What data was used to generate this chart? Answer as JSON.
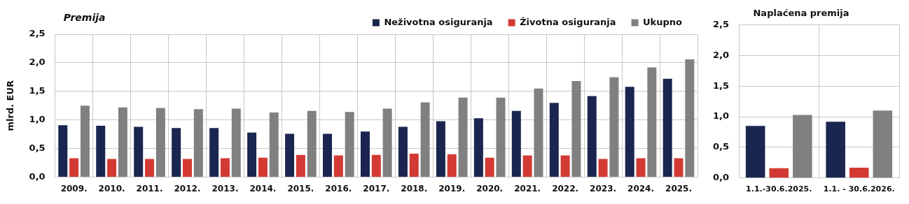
{
  "chart_data": [
    {
      "type": "bar",
      "title": "Premija",
      "ylabel": "mlrd. EUR",
      "categories": [
        "2009.",
        "2010.",
        "2011.",
        "2012.",
        "2013.",
        "2014.",
        "2015.",
        "2016.",
        "2017.",
        "2018.",
        "2019.",
        "2020.",
        "2021.",
        "2022.",
        "2023.",
        "2024.",
        "2025."
      ],
      "series": [
        {
          "name": "Neživotna osiguranja",
          "color": "#1a2550",
          "values": [
            0.91,
            0.9,
            0.88,
            0.86,
            0.86,
            0.78,
            0.76,
            0.76,
            0.8,
            0.88,
            0.98,
            1.03,
            1.16,
            1.3,
            1.42,
            1.58,
            1.72
          ]
        },
        {
          "name": "Životna osiguranja",
          "color": "#d33a33",
          "values": [
            0.33,
            0.32,
            0.32,
            0.32,
            0.33,
            0.34,
            0.39,
            0.38,
            0.39,
            0.41,
            0.4,
            0.34,
            0.38,
            0.38,
            0.32,
            0.33,
            0.33
          ]
        },
        {
          "name": "Ukupno",
          "color": "#808080",
          "values": [
            1.25,
            1.22,
            1.21,
            1.19,
            1.2,
            1.13,
            1.16,
            1.14,
            1.2,
            1.31,
            1.39,
            1.39,
            1.55,
            1.68,
            1.75,
            1.92,
            2.06
          ]
        }
      ],
      "ylim": [
        0,
        2.5
      ],
      "yticks": [
        {
          "value": 0,
          "label": "0,0"
        },
        {
          "value": 0.5,
          "label": "0,5"
        },
        {
          "value": 1,
          "label": "1,0"
        },
        {
          "value": 1.5,
          "label": "1,5"
        },
        {
          "value": 2,
          "label": "2,0"
        },
        {
          "value": 2.5,
          "label": "2,5"
        }
      ],
      "grid": true,
      "legend": "top right"
    },
    {
      "type": "bar",
      "title": "Naplaćena premija",
      "categories": [
        "1.1.-30.6.2025.",
        "1.1. - 30.6.2026."
      ],
      "series": [
        {
          "color": "#1a2550",
          "values": [
            0.85,
            0.92
          ]
        },
        {
          "color": "#d33a33",
          "values": [
            0.16,
            0.17
          ]
        },
        {
          "color": "#808080",
          "values": [
            1.03,
            1.1
          ]
        }
      ],
      "ylim": [
        0,
        2.5
      ],
      "yticks": [
        {
          "value": 0,
          "label": "0,0"
        },
        {
          "value": 0.5,
          "label": "0,5"
        },
        {
          "value": 1,
          "label": "1,0"
        },
        {
          "value": 1.5,
          "label": "1,5"
        },
        {
          "value": 2,
          "label": "2,0"
        },
        {
          "value": 2.5,
          "label": "2,5"
        }
      ],
      "grid": true
    }
  ]
}
